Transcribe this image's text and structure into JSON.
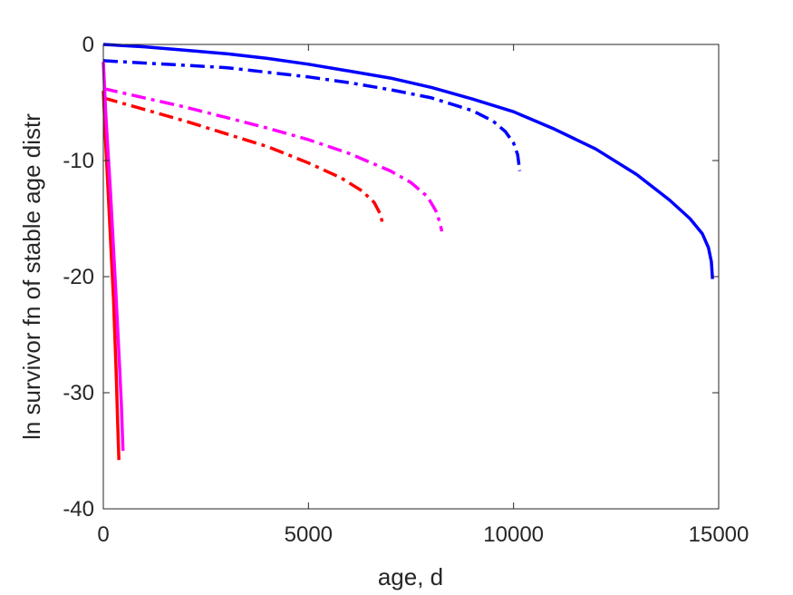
{
  "chart_data": {
    "type": "line",
    "title": "",
    "xlabel": "age, d",
    "ylabel": "ln survivor fn of stable age distr",
    "xlim": [
      0,
      15000
    ],
    "ylim": [
      -40,
      0
    ],
    "xticks": [
      0,
      5000,
      10000,
      15000
    ],
    "yticks": [
      0,
      -10,
      -20,
      -30,
      -40
    ],
    "xtick_labels": [
      "0",
      "5000",
      "10000",
      "15000"
    ],
    "ytick_labels": [
      "0",
      "-10",
      "-20",
      "-30",
      "-40"
    ],
    "grid": false,
    "legend": "none",
    "series": [
      {
        "color": "#0000ff",
        "style": "solid",
        "x": [
          0,
          1000,
          2000,
          3000,
          4000,
          5000,
          6000,
          7000,
          8000,
          9000,
          10000,
          11000,
          12000,
          13000,
          13800,
          14300,
          14600,
          14750,
          14820,
          14850
        ],
        "y": [
          0,
          -0.2,
          -0.5,
          -0.8,
          -1.2,
          -1.7,
          -2.3,
          -2.9,
          -3.7,
          -4.7,
          -5.8,
          -7.3,
          -9.0,
          -11.2,
          -13.4,
          -15.0,
          -16.3,
          -17.5,
          -18.7,
          -20.2
        ]
      },
      {
        "color": "#0000ff",
        "style": "dashdot",
        "x": [
          0,
          1000,
          2000,
          3000,
          4000,
          5000,
          6000,
          7000,
          8000,
          9000,
          9500,
          9800,
          10000,
          10100,
          10150
        ],
        "y": [
          -1.4,
          -1.6,
          -1.8,
          -2.0,
          -2.4,
          -2.8,
          -3.3,
          -3.9,
          -4.6,
          -5.7,
          -6.6,
          -7.5,
          -8.5,
          -9.5,
          -10.9
        ]
      },
      {
        "color": "#ff00ff",
        "style": "dashdot",
        "x": [
          0,
          1000,
          2000,
          3000,
          4000,
          5000,
          6000,
          7000,
          7500,
          7900,
          8100,
          8200,
          8250
        ],
        "y": [
          -3.8,
          -4.6,
          -5.4,
          -6.3,
          -7.2,
          -8.2,
          -9.4,
          -10.9,
          -11.9,
          -13.1,
          -14.3,
          -15.3,
          -16.1
        ]
      },
      {
        "color": "#ff0000",
        "style": "dashdot",
        "x": [
          0,
          1000,
          2000,
          3000,
          4000,
          5000,
          5800,
          6300,
          6600,
          6750,
          6820
        ],
        "y": [
          -4.6,
          -5.6,
          -6.6,
          -7.7,
          -8.8,
          -10.2,
          -11.5,
          -12.6,
          -13.6,
          -14.6,
          -15.6
        ]
      },
      {
        "color": "#ff0000",
        "style": "solid",
        "x": [
          0,
          50,
          150,
          250,
          320,
          350,
          380
        ],
        "y": [
          -4.0,
          -8.0,
          -15.0,
          -22.0,
          -29.0,
          -32.5,
          -35.8
        ]
      },
      {
        "color": "#ff00ff",
        "style": "solid",
        "x": [
          0,
          60,
          180,
          300,
          400,
          440,
          480
        ],
        "y": [
          -1.5,
          -6.0,
          -13.0,
          -21.0,
          -28.0,
          -31.0,
          -35.0
        ]
      }
    ]
  }
}
